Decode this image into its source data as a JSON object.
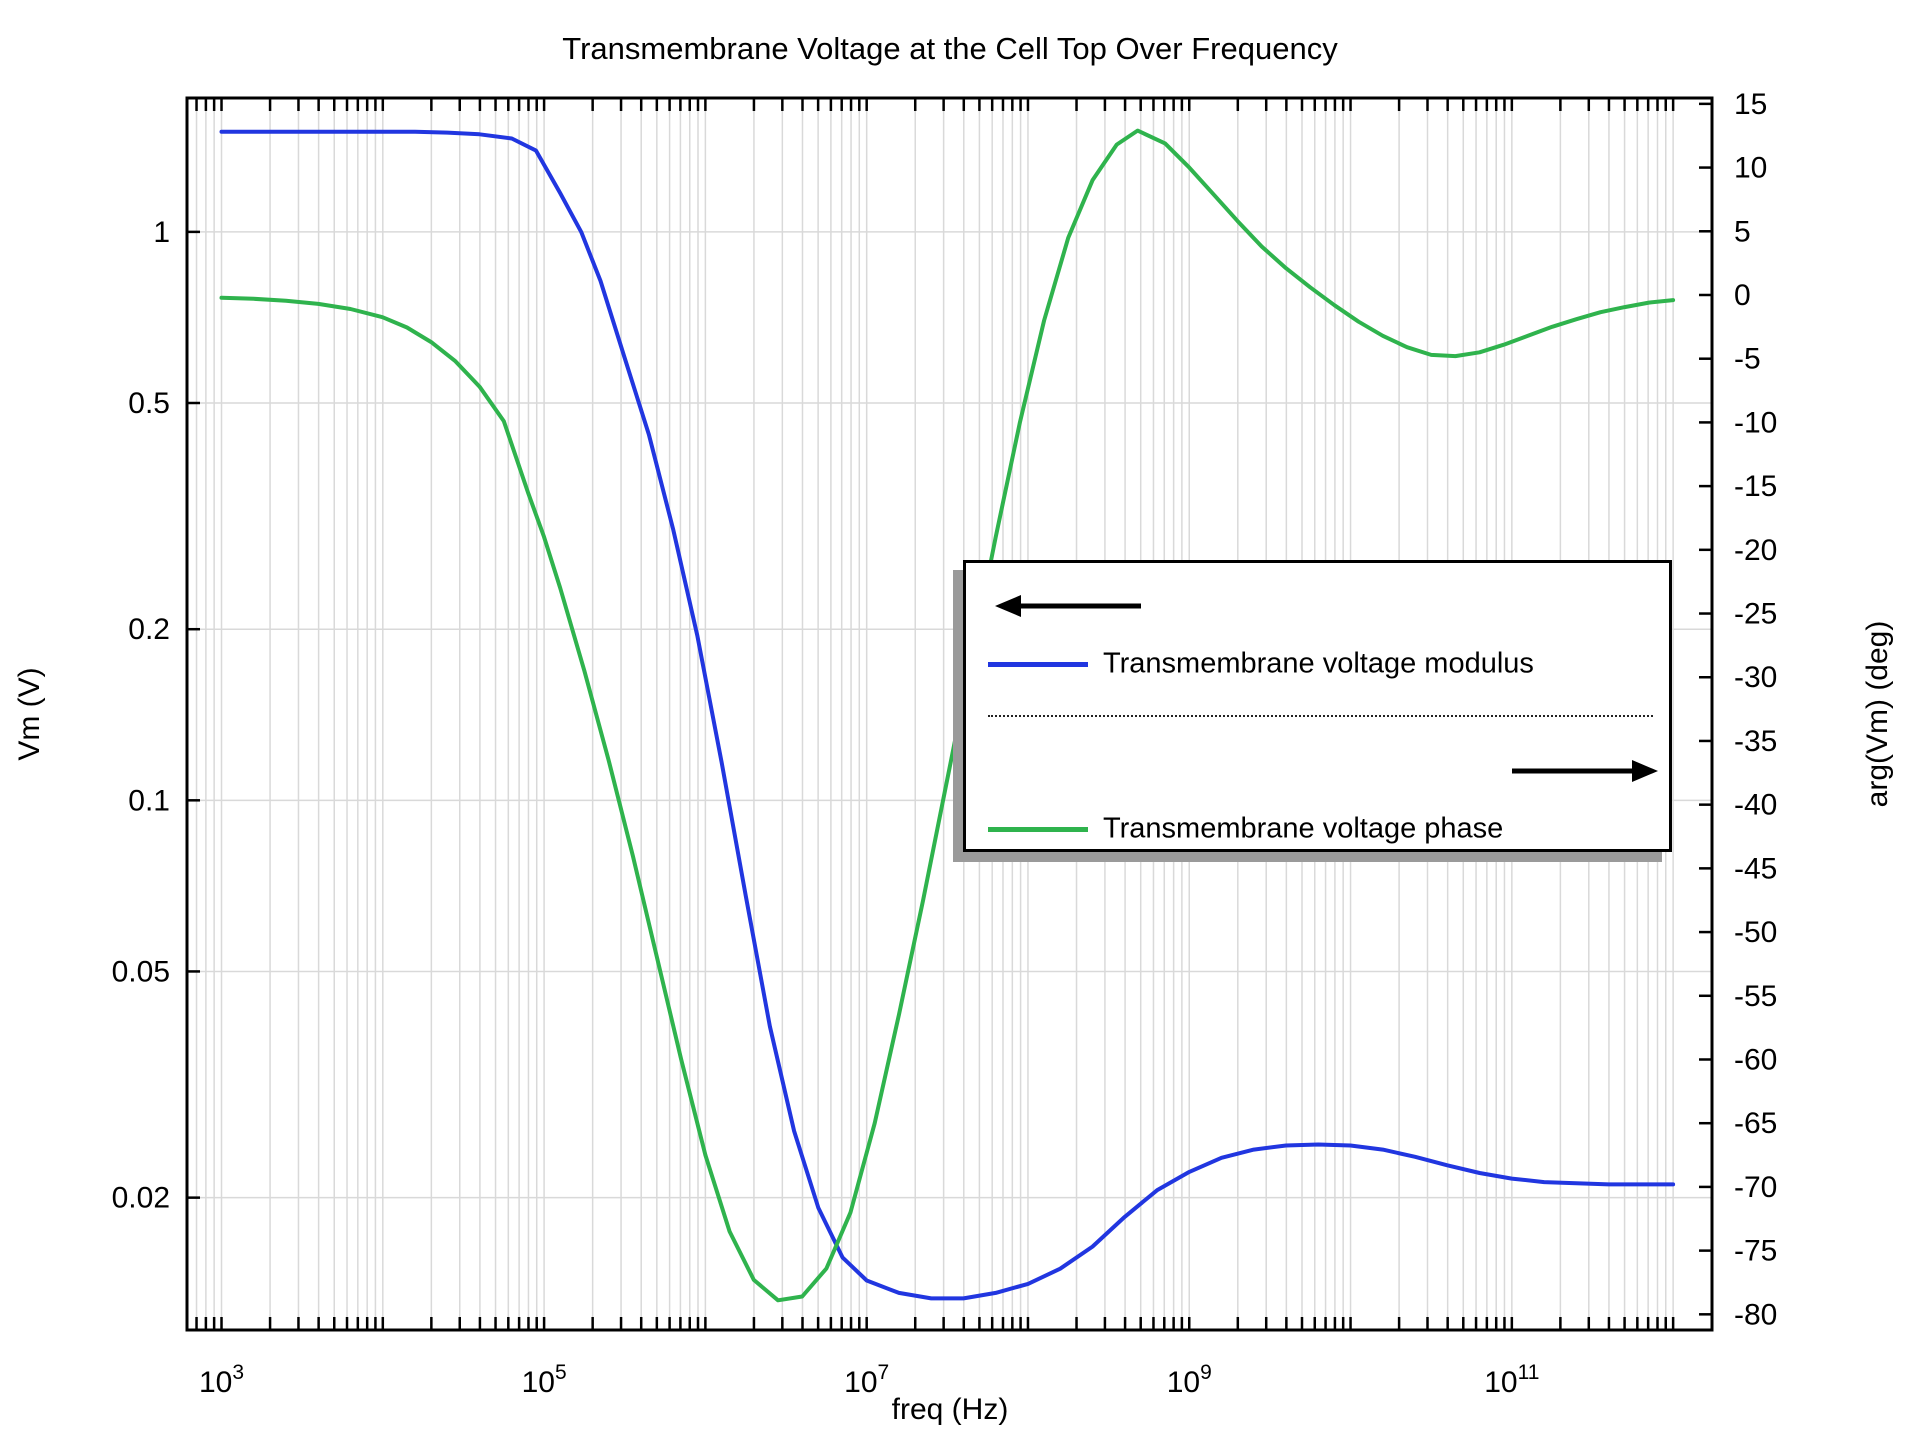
{
  "chart_data": {
    "type": "line",
    "title": "Transmembrane Voltage at the Cell Top Over Frequency",
    "xlabel": "freq (Hz)",
    "ylabel_left": "Vm (V)",
    "ylabel_right": "arg(Vm) (deg)",
    "x_scale": "log",
    "x_unit": "log10(Hz)",
    "x_range_log10": [
      2.786,
      12.241
    ],
    "x_labeled_decade_exponents": [
      3,
      5,
      7,
      9,
      11
    ],
    "y_left_scale": "log",
    "y_left_range": [
      0.0117,
      1.72
    ],
    "y_left_tick_labels": [
      "1",
      "0.5",
      "0.2",
      "0.1",
      "0.05",
      "0.02"
    ],
    "y_left_tick_values": [
      1,
      0.5,
      0.2,
      0.1,
      0.05,
      0.02
    ],
    "y_right_scale": "linear",
    "y_right_range": [
      -81.23,
      15.46
    ],
    "y_right_tick_values": [
      15,
      10,
      5,
      0,
      -5,
      -10,
      -15,
      -20,
      -25,
      -30,
      -35,
      -40,
      -45,
      -50,
      -55,
      -60,
      -65,
      -70,
      -75,
      -80
    ],
    "grid": true,
    "grid_color": "#d9d9d9",
    "axis_color": "#000000",
    "legend_position": "center-right",
    "legend": {
      "modulus_label": "Transmembrane voltage modulus",
      "phase_label": "Transmembrane voltage phase",
      "left_arrow": "points-to-left-axis",
      "right_arrow": "points-to-right-axis"
    },
    "series": [
      {
        "name": "Transmembrane voltage modulus",
        "axis": "left",
        "color": "#2136e0",
        "points_log10freq_volts": [
          [
            3.0,
            1.5
          ],
          [
            3.25,
            1.5
          ],
          [
            3.5,
            1.5
          ],
          [
            3.75,
            1.5
          ],
          [
            4.0,
            1.5
          ],
          [
            4.2,
            1.5
          ],
          [
            4.4,
            1.495
          ],
          [
            4.6,
            1.485
          ],
          [
            4.8,
            1.46
          ],
          [
            4.95,
            1.39
          ],
          [
            5.1,
            1.17
          ],
          [
            5.23,
            1.0
          ],
          [
            5.35,
            0.82
          ],
          [
            5.5,
            0.6
          ],
          [
            5.65,
            0.44
          ],
          [
            5.8,
            0.3
          ],
          [
            5.95,
            0.195
          ],
          [
            6.1,
            0.117
          ],
          [
            6.25,
            0.068
          ],
          [
            6.4,
            0.04
          ],
          [
            6.55,
            0.0262
          ],
          [
            6.7,
            0.0192
          ],
          [
            6.85,
            0.0157
          ],
          [
            7.0,
            0.0143
          ],
          [
            7.2,
            0.0136
          ],
          [
            7.4,
            0.0133
          ],
          [
            7.6,
            0.0133
          ],
          [
            7.8,
            0.0136
          ],
          [
            8.0,
            0.0141
          ],
          [
            8.2,
            0.015
          ],
          [
            8.4,
            0.0164
          ],
          [
            8.6,
            0.0185
          ],
          [
            8.8,
            0.0206
          ],
          [
            9.0,
            0.0222
          ],
          [
            9.2,
            0.0235
          ],
          [
            9.4,
            0.0243
          ],
          [
            9.6,
            0.0247
          ],
          [
            9.8,
            0.0248
          ],
          [
            10.0,
            0.0247
          ],
          [
            10.2,
            0.0243
          ],
          [
            10.4,
            0.0236
          ],
          [
            10.6,
            0.0228
          ],
          [
            10.8,
            0.0221
          ],
          [
            11.0,
            0.0216
          ],
          [
            11.2,
            0.0213
          ],
          [
            11.4,
            0.0212
          ],
          [
            11.6,
            0.0211
          ],
          [
            11.8,
            0.0211
          ],
          [
            12.0,
            0.0211
          ]
        ]
      },
      {
        "name": "Transmembrane voltage phase",
        "axis": "right",
        "color": "#2fb34d",
        "points_log10freq_deg": [
          [
            3.0,
            -0.22
          ],
          [
            3.2,
            -0.3
          ],
          [
            3.4,
            -0.45
          ],
          [
            3.6,
            -0.7
          ],
          [
            3.8,
            -1.1
          ],
          [
            4.0,
            -1.75
          ],
          [
            4.15,
            -2.55
          ],
          [
            4.3,
            -3.7
          ],
          [
            4.45,
            -5.2
          ],
          [
            4.6,
            -7.2
          ],
          [
            4.75,
            -9.9
          ],
          [
            4.9,
            -15.5
          ],
          [
            5.0,
            -19.0
          ],
          [
            5.1,
            -23.0
          ],
          [
            5.25,
            -29.5
          ],
          [
            5.4,
            -36.5
          ],
          [
            5.55,
            -44.0
          ],
          [
            5.7,
            -52.0
          ],
          [
            5.85,
            -60.0
          ],
          [
            6.0,
            -67.5
          ],
          [
            6.15,
            -73.5
          ],
          [
            6.3,
            -77.3
          ],
          [
            6.45,
            -78.9
          ],
          [
            6.6,
            -78.6
          ],
          [
            6.75,
            -76.4
          ],
          [
            6.9,
            -72.0
          ],
          [
            7.05,
            -65.0
          ],
          [
            7.2,
            -56.5
          ],
          [
            7.35,
            -47.5
          ],
          [
            7.5,
            -38.0
          ],
          [
            7.65,
            -28.5
          ],
          [
            7.8,
            -19.0
          ],
          [
            7.95,
            -10.0
          ],
          [
            8.1,
            -2.0
          ],
          [
            8.25,
            4.5
          ],
          [
            8.4,
            9.0
          ],
          [
            8.55,
            11.8
          ],
          [
            8.68,
            12.9
          ],
          [
            8.85,
            11.9
          ],
          [
            9.0,
            10.0
          ],
          [
            9.15,
            7.9
          ],
          [
            9.3,
            5.8
          ],
          [
            9.45,
            3.8
          ],
          [
            9.6,
            2.1
          ],
          [
            9.75,
            0.6
          ],
          [
            9.9,
            -0.8
          ],
          [
            10.05,
            -2.1
          ],
          [
            10.2,
            -3.2
          ],
          [
            10.35,
            -4.1
          ],
          [
            10.5,
            -4.7
          ],
          [
            10.65,
            -4.8
          ],
          [
            10.8,
            -4.5
          ],
          [
            10.95,
            -3.9
          ],
          [
            11.1,
            -3.2
          ],
          [
            11.25,
            -2.5
          ],
          [
            11.4,
            -1.9
          ],
          [
            11.55,
            -1.35
          ],
          [
            11.7,
            -0.95
          ],
          [
            11.85,
            -0.6
          ],
          [
            12.0,
            -0.4
          ]
        ]
      }
    ]
  }
}
